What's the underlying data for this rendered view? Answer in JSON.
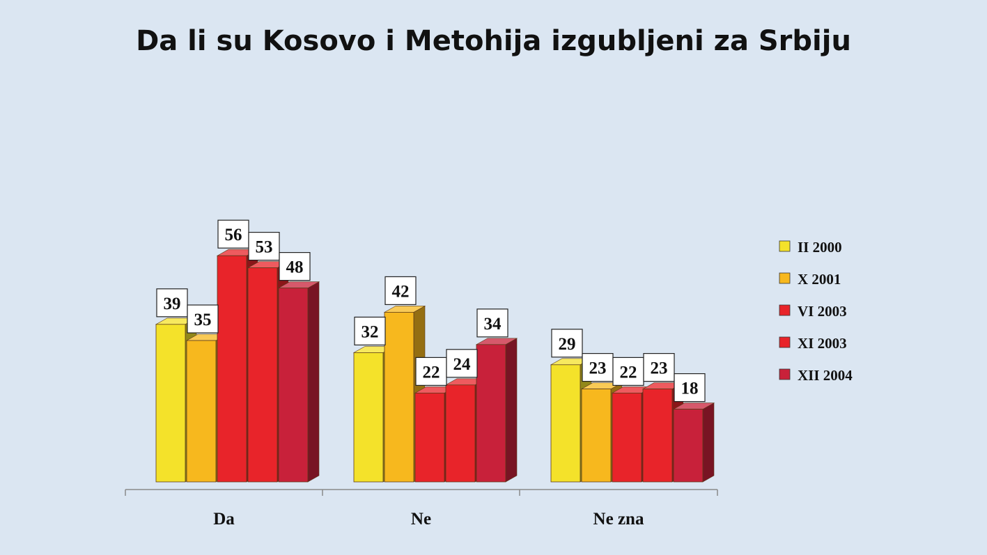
{
  "chart_data": {
    "type": "bar",
    "title": "Da li su Kosovo i Metohija izgubljeni za Srbiju",
    "categories": [
      "Da",
      "Ne",
      "Ne zna"
    ],
    "series": [
      {
        "name": "II 2000",
        "values": [
          39,
          32,
          29
        ],
        "color": "#f4e22a"
      },
      {
        "name": "X 2001",
        "values": [
          35,
          42,
          23
        ],
        "color": "#f7b81e"
      },
      {
        "name": "VI 2003",
        "values": [
          56,
          22,
          22
        ],
        "color": "#e8242a"
      },
      {
        "name": "XI 2003",
        "values": [
          53,
          24,
          23
        ],
        "color": "#e8242a"
      },
      {
        "name": "XII 2004",
        "values": [
          48,
          34,
          18
        ],
        "color": "#c8213a"
      }
    ],
    "ylim": [
      0,
      60
    ],
    "legend": "right",
    "grid": false,
    "three_d": true,
    "data_labels": true
  }
}
